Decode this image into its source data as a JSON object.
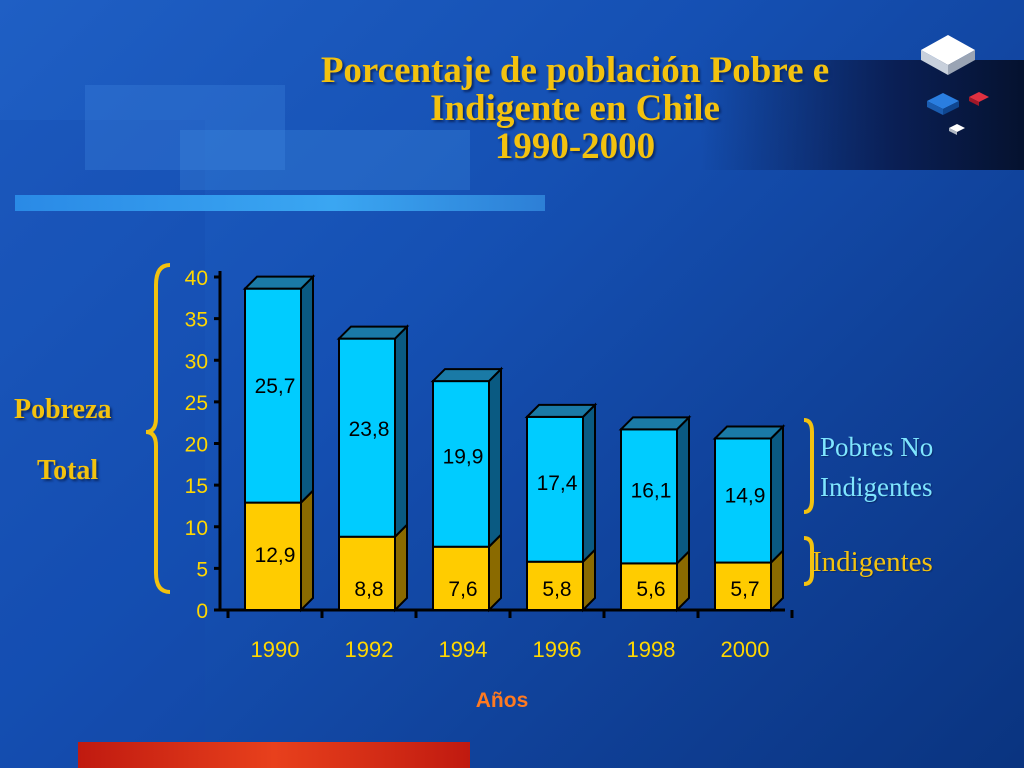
{
  "title": {
    "line1": "Porcentaje de población Pobre e",
    "line2": "Indigente en Chile",
    "line3": "1990-2000"
  },
  "left_bracket_label": {
    "line1": "Pobreza",
    "line2": "Total"
  },
  "right_labels": {
    "pobres_line1": "Pobres  No",
    "pobres_line2": "Indigentes",
    "indigentes": "Indigentes"
  },
  "colors": {
    "title": "#f3c20f",
    "indigentes_bar": "#ffcc00",
    "pobres_bar": "#00ccff",
    "axis_text": "#ffd700",
    "xlabel": "#ff7a20"
  },
  "chart_data": {
    "type": "bar",
    "stacked": true,
    "categories": [
      "1990",
      "1992",
      "1994",
      "1996",
      "1998",
      "2000"
    ],
    "series": [
      {
        "name": "Indigentes",
        "values": [
          12.9,
          8.8,
          7.6,
          5.8,
          5.6,
          5.7
        ],
        "labels": [
          "12,9",
          "8,8",
          "7,6",
          "5,8",
          "5,6",
          "5,7"
        ]
      },
      {
        "name": "Pobres No Indigentes",
        "values": [
          25.7,
          23.8,
          19.9,
          17.4,
          16.1,
          14.9
        ],
        "labels": [
          "25,7",
          "23,8",
          "19,9",
          "17,4",
          "16,1",
          "14,9"
        ]
      }
    ],
    "yticks": [
      "0",
      "5",
      "10",
      "15",
      "20",
      "25",
      "30",
      "35",
      "40"
    ],
    "ylim": [
      0,
      40
    ],
    "xlabel": "Años",
    "ylabel": "",
    "grid": false,
    "legend": "none"
  }
}
